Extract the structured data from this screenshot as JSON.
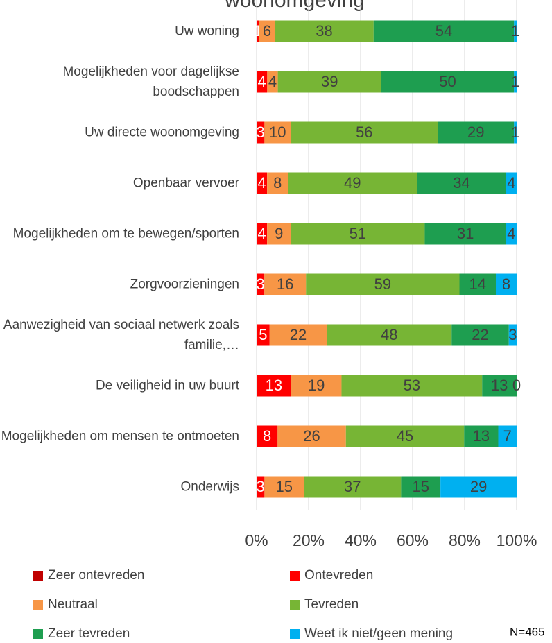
{
  "chart_data": {
    "type": "bar",
    "orientation": "horizontal",
    "stacked": "percent",
    "title": "woonomgeving",
    "categories": [
      "Uw woning",
      "Mogelijkheden voor dagelijkse boodschappen",
      "Uw directe woonomgeving",
      "Openbaar vervoer",
      "Mogelijkheden om te bewegen/sporten",
      "Zorgvoorzieningen",
      "Aanwezigheid van sociaal netwerk zoals familie,…",
      "De veiligheid in uw buurt",
      "Mogelijkheden om mensen te ontmoeten",
      "Onderwijs"
    ],
    "series": [
      {
        "name": "Zeer ontevreden",
        "color": "#c00000",
        "values": [
          null,
          null,
          null,
          null,
          null,
          null,
          null,
          null,
          null,
          null
        ]
      },
      {
        "name": "Ontevreden",
        "color": "#ff0000",
        "values": [
          1,
          4,
          3,
          4,
          4,
          3,
          5,
          13,
          8,
          3
        ]
      },
      {
        "name": "Neutraal",
        "color": "#f79646",
        "values": [
          6,
          4,
          10,
          8,
          9,
          16,
          22,
          19,
          26,
          15
        ]
      },
      {
        "name": "Tevreden",
        "color": "#77b535",
        "values": [
          38,
          39,
          56,
          49,
          51,
          59,
          48,
          53,
          45,
          37
        ]
      },
      {
        "name": "Zeer tevreden",
        "color": "#1e9e50",
        "values": [
          54,
          50,
          29,
          34,
          31,
          14,
          22,
          13,
          13,
          15
        ]
      },
      {
        "name": "Weet ik niet/geen mening",
        "color": "#00b0f0",
        "values": [
          1,
          1,
          1,
          4,
          4,
          8,
          3,
          0,
          7,
          29
        ]
      }
    ],
    "xlim": [
      0,
      100
    ],
    "xticks": [
      {
        "value": 0,
        "label": "0%"
      },
      {
        "value": 20,
        "label": "20%"
      },
      {
        "value": 40,
        "label": "40%"
      },
      {
        "value": 60,
        "label": "60%"
      },
      {
        "value": 80,
        "label": "80%"
      },
      {
        "value": 100,
        "label": "100%"
      }
    ],
    "grid": true,
    "legend": "bottom",
    "note": "N=465"
  }
}
